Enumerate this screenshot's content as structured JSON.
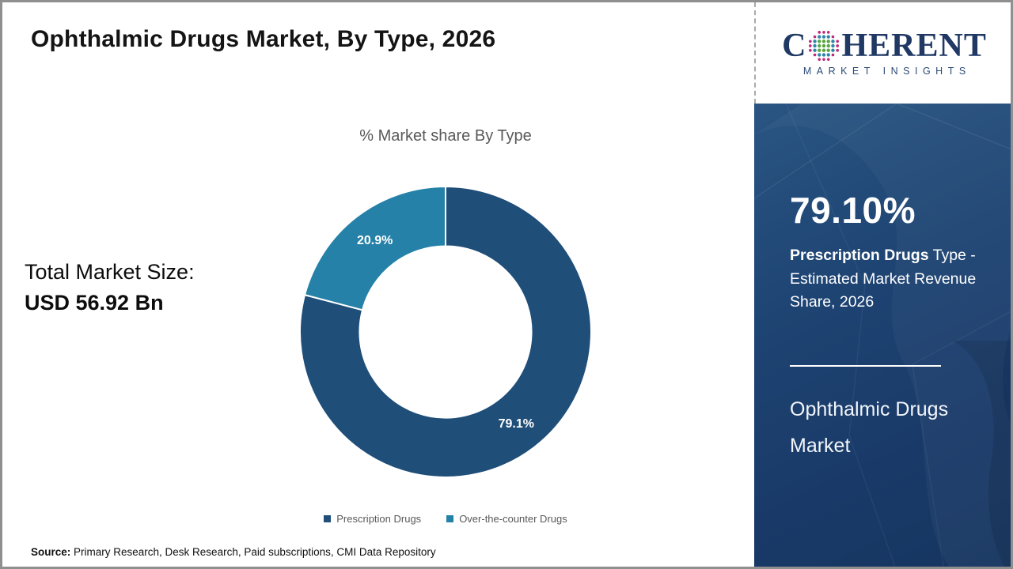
{
  "slide": {
    "title": "Ophthalmic Drugs Market, By Type, 2026",
    "total_market_label": "Total Market Size:",
    "total_market_value": "USD 56.92 Bn",
    "source_label": "Source:",
    "source_text": " Primary Research, Desk Research, Paid subscriptions, CMI Data Repository"
  },
  "logo": {
    "word_start": "C",
    "word_end": "HERENT",
    "subtitle": "MARKET INSIGHTS",
    "colors": {
      "navy": "#1f3864",
      "teal": "#2e86a8",
      "green": "#56a73e",
      "magenta": "#bf2a7c"
    }
  },
  "sidebar": {
    "highlight_value": "79.10%",
    "highlight_desc": {
      "bold": "Prescription Drugs",
      "after_bold": " Type - ",
      "lines": [
        "Estimated Market",
        "Revenue Share, 2026"
      ]
    },
    "panel_title": "Ophthalmic Drugs Market",
    "bg_color": "#1b3c6d"
  },
  "chart_data": {
    "type": "pie",
    "subtype": "donut",
    "title": "% Market share By Type",
    "categories": [
      "Prescription Drugs",
      "Over-the-counter Drugs"
    ],
    "values": [
      79.1,
      20.9
    ],
    "labels": [
      "79.1%",
      "20.9%"
    ],
    "colors": [
      "#1f4e79",
      "#2581a8"
    ],
    "inner_radius_ratio": 0.59,
    "start_angle_deg": 0,
    "direction": "clockwise",
    "legend_position": "bottom",
    "annotation_total": "USD 56.92 Bn"
  }
}
